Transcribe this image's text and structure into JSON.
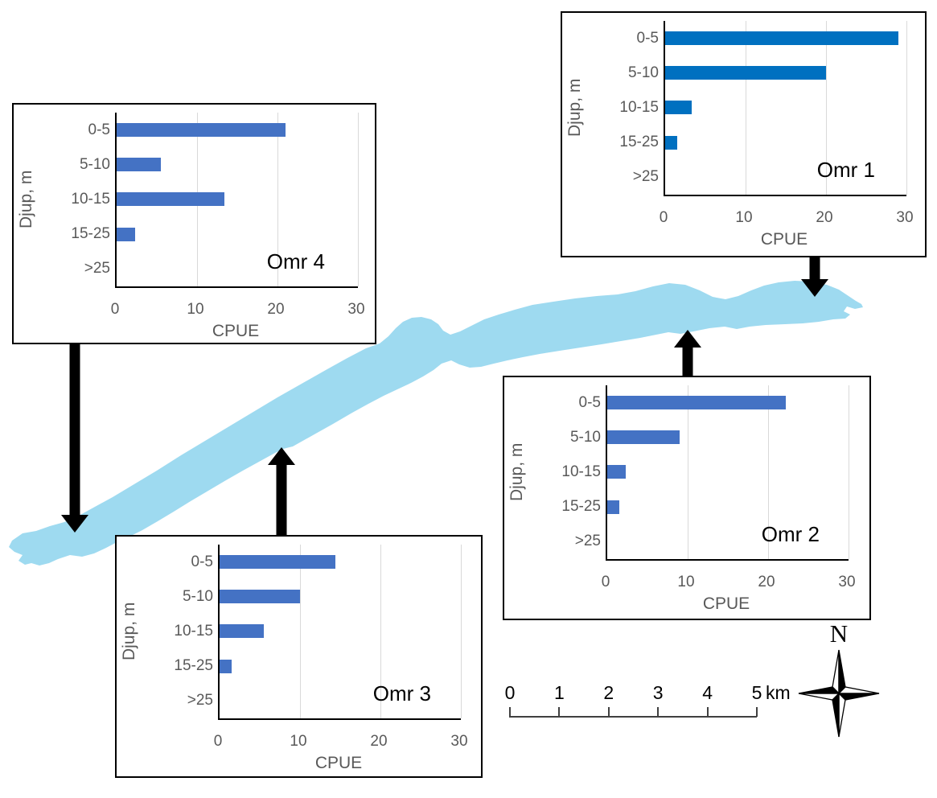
{
  "figure": {
    "description_labels": {
      "compass_label": "N",
      "scale_unit": "km"
    }
  },
  "map": {
    "lake_color": "#9edaf0",
    "arrow_color": "#000000",
    "compass": {
      "label": "N"
    },
    "scale_bar": {
      "labels": [
        "0",
        "1",
        "2",
        "3",
        "4",
        "5"
      ],
      "unit": "km"
    }
  },
  "chart_data": [
    {
      "type": "bar",
      "orientation": "horizontal",
      "area_label": "Omr 1",
      "categories": [
        "0-5",
        "5-10",
        "10-15",
        "15-25",
        ">25"
      ],
      "values": [
        29,
        20,
        3.3,
        1.5,
        0
      ],
      "xlabel": "CPUE",
      "ylabel": "Djup, m",
      "xlim": [
        0,
        30
      ],
      "xticks": [
        0,
        10,
        20,
        30
      ],
      "grid": true,
      "bar_color": "#0070c0"
    },
    {
      "type": "bar",
      "orientation": "horizontal",
      "area_label": "Omr 2",
      "categories": [
        "0-5",
        "5-10",
        "10-15",
        "15-25",
        ">25"
      ],
      "values": [
        22.2,
        9,
        2.3,
        1.5,
        0
      ],
      "xlabel": "CPUE",
      "ylabel": "Djup, m",
      "xlim": [
        0,
        30
      ],
      "xticks": [
        0,
        10,
        20,
        30
      ],
      "grid": true,
      "bar_color": "#4472c4"
    },
    {
      "type": "bar",
      "orientation": "horizontal",
      "area_label": "Omr 3",
      "categories": [
        "0-5",
        "5-10",
        "10-15",
        "15-25",
        ">25"
      ],
      "values": [
        14.4,
        10,
        5.5,
        1.5,
        0
      ],
      "xlabel": "CPUE",
      "ylabel": "Djup, m",
      "xlim": [
        0,
        30
      ],
      "xticks": [
        0,
        10,
        20,
        30
      ],
      "grid": true,
      "bar_color": "#4472c4"
    },
    {
      "type": "bar",
      "orientation": "horizontal",
      "area_label": "Omr 4",
      "categories": [
        "0-5",
        "5-10",
        "10-15",
        "15-25",
        ">25"
      ],
      "values": [
        21,
        5.5,
        13.4,
        2.3,
        0
      ],
      "xlabel": "CPUE",
      "ylabel": "Djup, m",
      "xlim": [
        0,
        30
      ],
      "xticks": [
        0,
        10,
        20,
        30
      ],
      "grid": true,
      "bar_color": "#4472c4"
    }
  ]
}
